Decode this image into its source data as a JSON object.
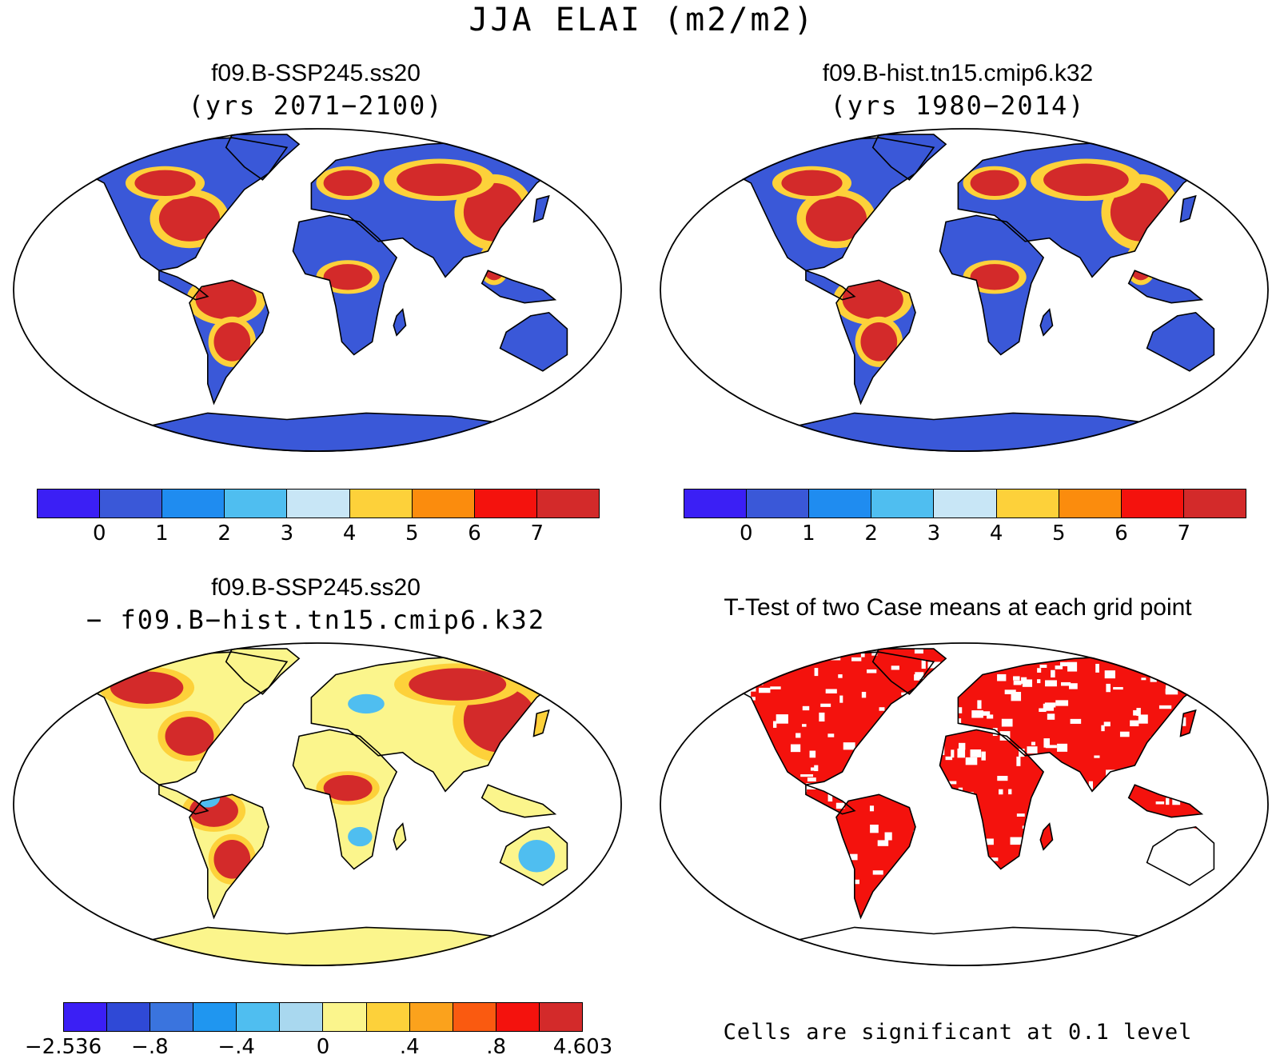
{
  "title": "JJA ELAI (m2/m2)",
  "panels": {
    "top_left": {
      "title": "f09.B-SSP245.ss20",
      "subtitle": "(yrs 2071−2100)"
    },
    "top_right": {
      "title": "f09.B-hist.tn15.cmip6.k32",
      "subtitle": "(yrs 1980−2014)"
    },
    "bottom_left": {
      "title": "f09.B-SSP245.ss20",
      "subtitle": "− f09.B−hist.tn15.cmip6.k32"
    },
    "bottom_right": {
      "title": "T-Test of two Case means at each grid point",
      "note": "Cells are significant at 0.1 level"
    }
  },
  "colorbar_main": {
    "colors": [
      "#3b1ff5",
      "#3a58d8",
      "#1f8cf0",
      "#4fbef0",
      "#c8e6f6",
      "#fdd13a",
      "#fb8c0d",
      "#f4120d",
      "#d32a2a"
    ],
    "ticks": [
      "0",
      "1",
      "2",
      "3",
      "4",
      "5",
      "6",
      "7"
    ]
  },
  "colorbar_diff": {
    "colors": [
      "#3b1ff5",
      "#2f49d6",
      "#3a74de",
      "#1f96f0",
      "#4fbef0",
      "#a9d8ef",
      "#fbf58c",
      "#fdd13a",
      "#fba21c",
      "#fa5a10",
      "#f4120d",
      "#d32a2a"
    ],
    "ticks": [
      "−2.536",
      "−.8",
      "−.4",
      "0",
      ".4",
      ".8",
      "4.603"
    ]
  },
  "map_colors": {
    "ocean": "#ffffff",
    "coast": "#000000",
    "land_low": "#3a58d8",
    "land_mid": "#fdd13a",
    "land_high": "#d32a2a",
    "diff_base": "#fbf58c",
    "diff_pos": "#d32a2a",
    "diff_neg": "#4fbef0",
    "sig": "#f4120d"
  }
}
